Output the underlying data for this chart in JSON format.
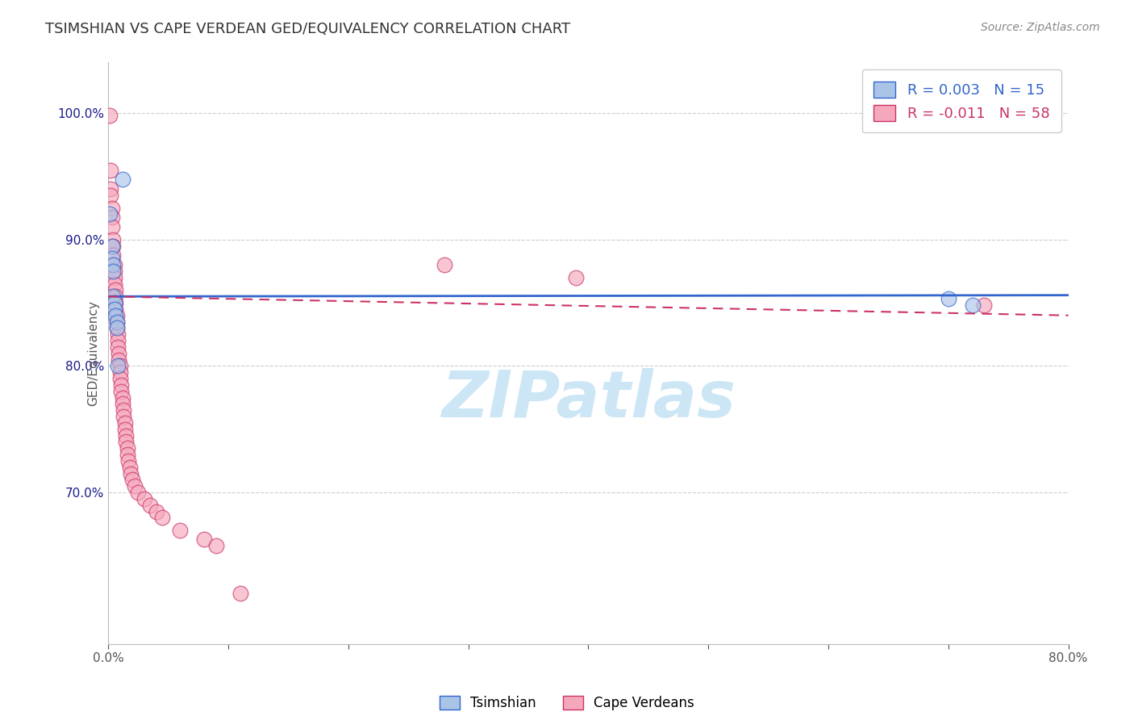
{
  "title": "TSIMSHIAN VS CAPE VERDEAN GED/EQUIVALENCY CORRELATION CHART",
  "source": "Source: ZipAtlas.com",
  "ylabel": "GED/Equivalency",
  "xlim": [
    0.0,
    0.8
  ],
  "ylim": [
    0.58,
    1.04
  ],
  "yticks": [
    0.7,
    0.8,
    0.9,
    1.0
  ],
  "ytick_labels": [
    "70.0%",
    "80.0%",
    "90.0%",
    "100.0%"
  ],
  "xticks": [
    0.0,
    0.1,
    0.2,
    0.3,
    0.4,
    0.5,
    0.6,
    0.7,
    0.8
  ],
  "xtick_labels": [
    "0.0%",
    "",
    "",
    "",
    "",
    "",
    "",
    "",
    "80.0%"
  ],
  "blue_R": 0.003,
  "blue_N": 15,
  "pink_R": -0.011,
  "pink_N": 58,
  "blue_color": "#aac4e8",
  "pink_color": "#f5a8bc",
  "blue_line_color": "#3366cc",
  "pink_line_color": "#cc3366",
  "blue_line_solid": true,
  "pink_line_dashed": true,
  "blue_scatter": [
    [
      0.001,
      0.92
    ],
    [
      0.003,
      0.895
    ],
    [
      0.003,
      0.885
    ],
    [
      0.004,
      0.88
    ],
    [
      0.004,
      0.875
    ],
    [
      0.004,
      0.855
    ],
    [
      0.005,
      0.85
    ],
    [
      0.005,
      0.845
    ],
    [
      0.006,
      0.84
    ],
    [
      0.007,
      0.835
    ],
    [
      0.007,
      0.83
    ],
    [
      0.008,
      0.8
    ],
    [
      0.012,
      0.948
    ],
    [
      0.7,
      0.853
    ],
    [
      0.72,
      0.848
    ]
  ],
  "pink_scatter": [
    [
      0.001,
      0.998
    ],
    [
      0.002,
      0.955
    ],
    [
      0.002,
      0.94
    ],
    [
      0.002,
      0.935
    ],
    [
      0.003,
      0.925
    ],
    [
      0.003,
      0.918
    ],
    [
      0.003,
      0.91
    ],
    [
      0.004,
      0.9
    ],
    [
      0.004,
      0.895
    ],
    [
      0.004,
      0.888
    ],
    [
      0.005,
      0.88
    ],
    [
      0.005,
      0.875
    ],
    [
      0.005,
      0.87
    ],
    [
      0.005,
      0.865
    ],
    [
      0.006,
      0.86
    ],
    [
      0.006,
      0.855
    ],
    [
      0.006,
      0.85
    ],
    [
      0.006,
      0.845
    ],
    [
      0.007,
      0.84
    ],
    [
      0.007,
      0.835
    ],
    [
      0.007,
      0.83
    ],
    [
      0.008,
      0.825
    ],
    [
      0.008,
      0.82
    ],
    [
      0.008,
      0.815
    ],
    [
      0.009,
      0.81
    ],
    [
      0.009,
      0.805
    ],
    [
      0.01,
      0.8
    ],
    [
      0.01,
      0.795
    ],
    [
      0.01,
      0.79
    ],
    [
      0.011,
      0.785
    ],
    [
      0.011,
      0.78
    ],
    [
      0.012,
      0.775
    ],
    [
      0.012,
      0.77
    ],
    [
      0.013,
      0.765
    ],
    [
      0.013,
      0.76
    ],
    [
      0.014,
      0.755
    ],
    [
      0.014,
      0.75
    ],
    [
      0.015,
      0.745
    ],
    [
      0.015,
      0.74
    ],
    [
      0.016,
      0.735
    ],
    [
      0.016,
      0.73
    ],
    [
      0.017,
      0.725
    ],
    [
      0.018,
      0.72
    ],
    [
      0.019,
      0.715
    ],
    [
      0.02,
      0.71
    ],
    [
      0.022,
      0.705
    ],
    [
      0.025,
      0.7
    ],
    [
      0.03,
      0.695
    ],
    [
      0.035,
      0.69
    ],
    [
      0.04,
      0.685
    ],
    [
      0.045,
      0.68
    ],
    [
      0.06,
      0.67
    ],
    [
      0.08,
      0.663
    ],
    [
      0.09,
      0.658
    ],
    [
      0.11,
      0.62
    ],
    [
      0.28,
      0.88
    ],
    [
      0.39,
      0.87
    ],
    [
      0.73,
      0.848
    ]
  ],
  "watermark_text": "ZIPatlas",
  "watermark_color": "#c8e4f5",
  "background_color": "#ffffff",
  "grid_color": "#cccccc",
  "axis_tick_color": "#1a1a8c",
  "title_color": "#333333",
  "title_fontsize": 13,
  "source_fontsize": 10,
  "legend_fontsize": 13,
  "marker_size": 180,
  "blue_regression_y_at_0": 0.855,
  "blue_regression_y_at_80": 0.856,
  "pink_regression_y_at_0": 0.855,
  "pink_regression_y_at_80": 0.84
}
